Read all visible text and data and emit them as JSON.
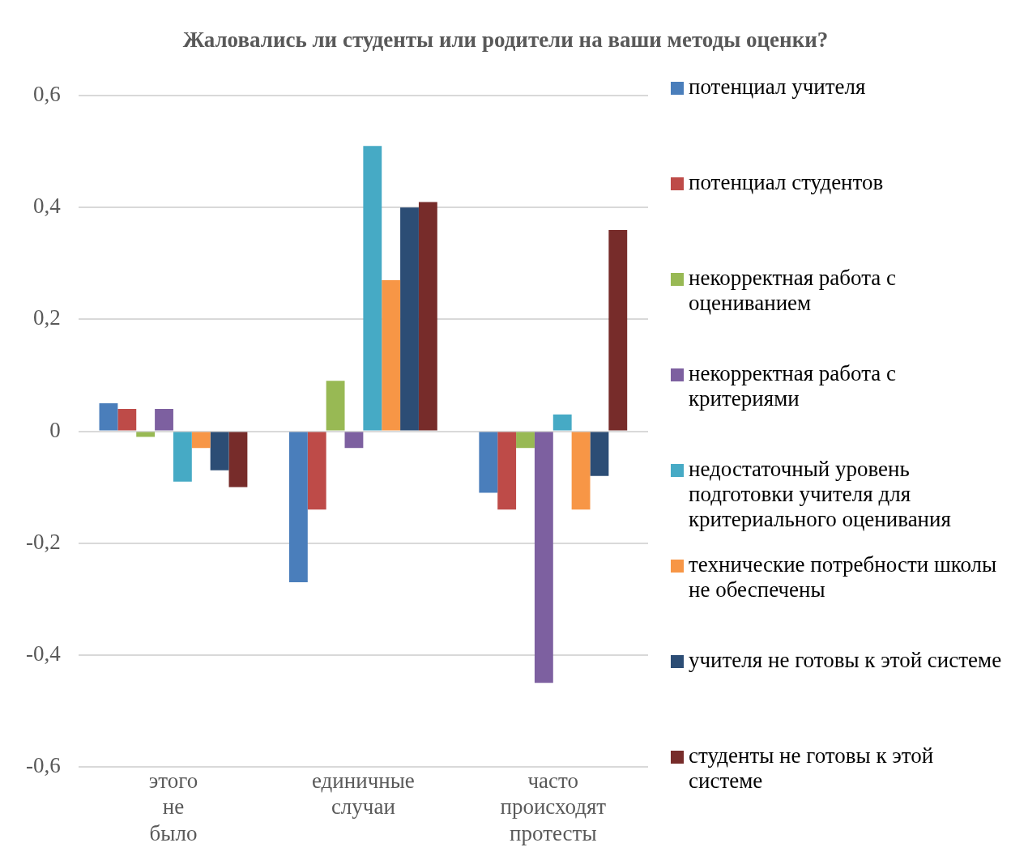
{
  "chart_data": {
    "type": "bar",
    "title": "Жаловались ли студенты или родители на ваши методы оценки?",
    "categories": [
      "этого не было",
      "единичные случаи",
      "часто происходят протесты"
    ],
    "series": [
      {
        "name": "потенциал учителя",
        "color": "#4a7ebb",
        "values": [
          0.05,
          -0.27,
          -0.11
        ]
      },
      {
        "name": "потенциал студентов",
        "color": "#be4b48",
        "values": [
          0.04,
          -0.14,
          -0.14
        ]
      },
      {
        "name": "некорректная работа с оцениванием",
        "color": "#98b954",
        "values": [
          -0.01,
          0.09,
          -0.03
        ]
      },
      {
        "name": "некорректная  работа с критериями",
        "color": "#7d60a0",
        "values": [
          0.04,
          -0.03,
          -0.45
        ]
      },
      {
        "name": "недостаточный уровень подготовки учителя для критериального оценивания",
        "color": "#46aac5",
        "values": [
          -0.09,
          0.51,
          0.03
        ]
      },
      {
        "name": "технические  потребности школы не обеспечены",
        "color": "#f79646",
        "values": [
          -0.03,
          0.27,
          -0.14
        ]
      },
      {
        "name": "учителя не готовы к этой системе",
        "color": "#2c4d75",
        "values": [
          -0.07,
          0.4,
          -0.08
        ]
      },
      {
        "name": "студенты не готовы к этой системе",
        "color": "#772c2a",
        "values": [
          -0.1,
          0.41,
          0.36
        ]
      }
    ],
    "ylim": [
      -0.6,
      0.6
    ],
    "yticks": [
      {
        "value": -0.6,
        "label": "-0,6"
      },
      {
        "value": -0.4,
        "label": "-0,4"
      },
      {
        "value": -0.2,
        "label": "-0,2"
      },
      {
        "value": 0,
        "label": "0"
      },
      {
        "value": 0.2,
        "label": "0,2"
      },
      {
        "value": 0.4,
        "label": "0,4"
      },
      {
        "value": 0.6,
        "label": "0,6"
      }
    ],
    "grid": "y",
    "legend": "right"
  }
}
